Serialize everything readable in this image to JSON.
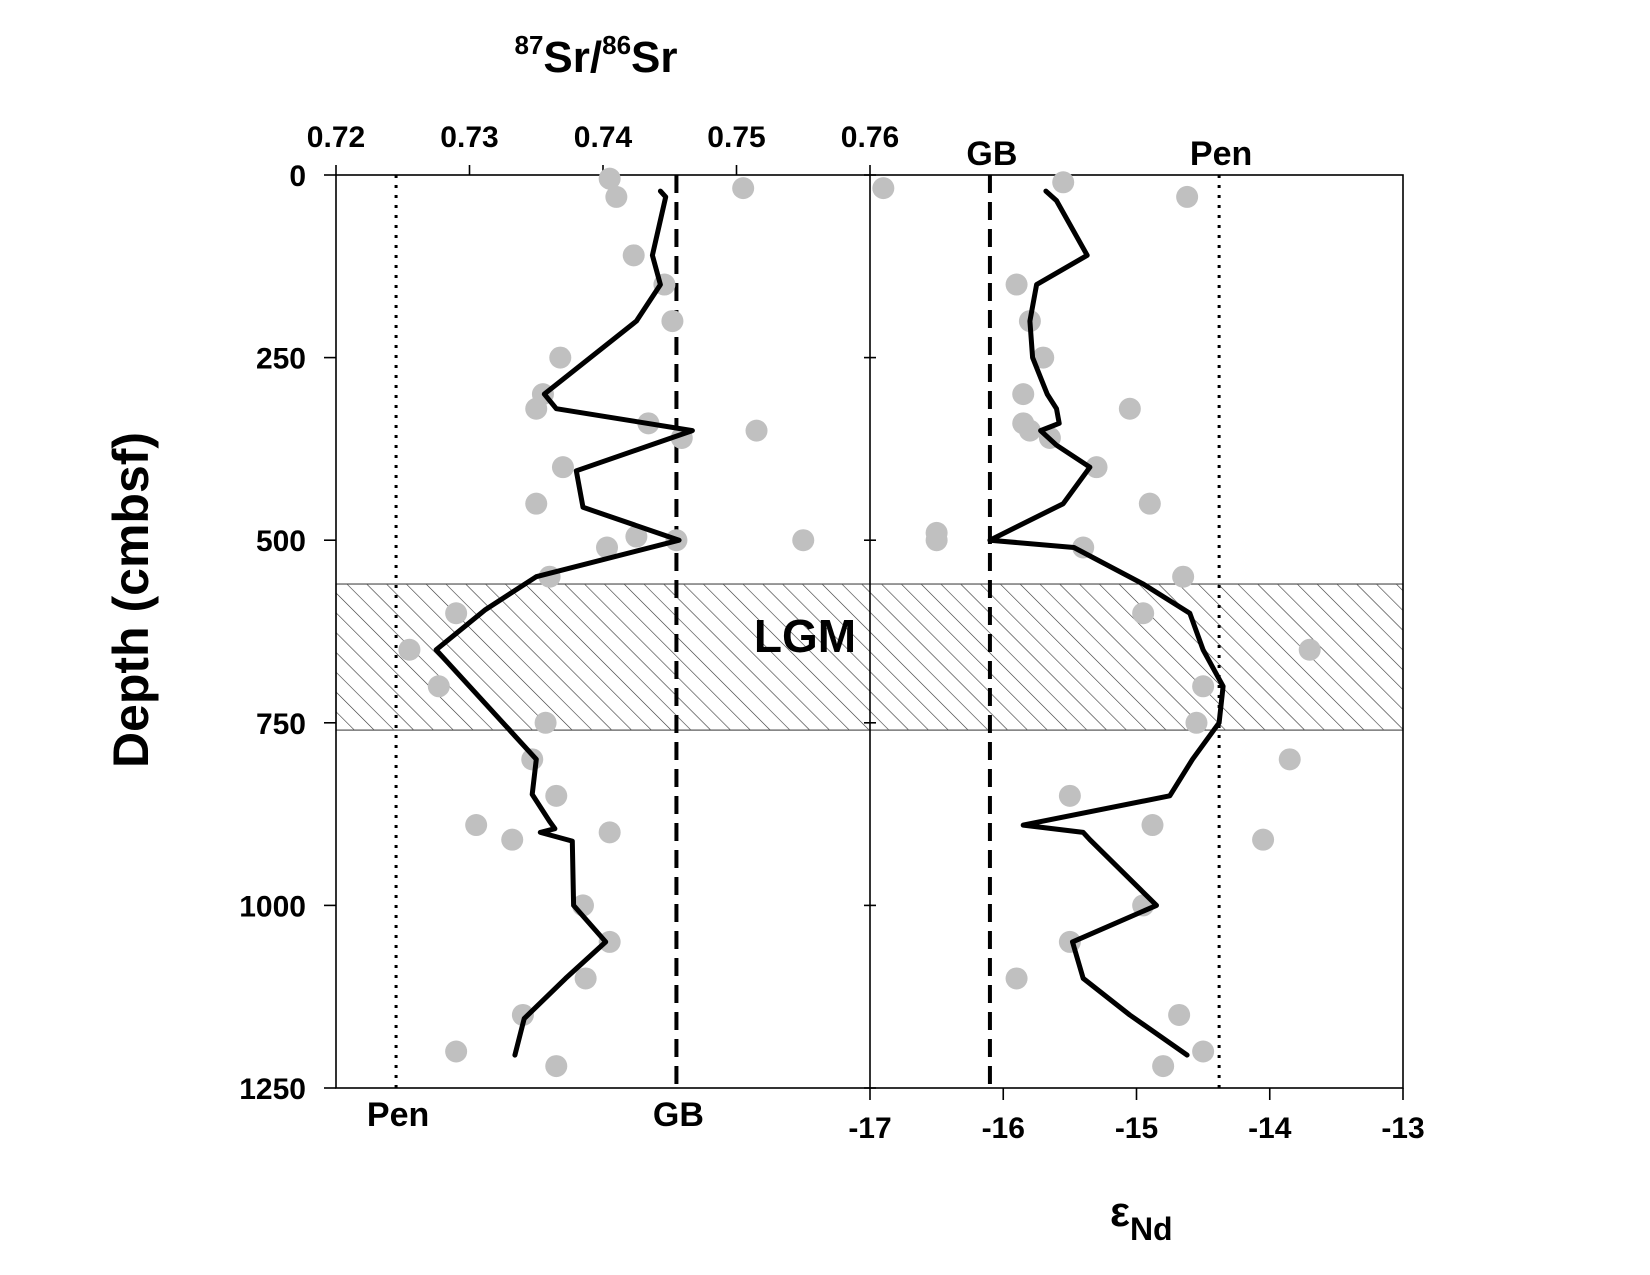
{
  "chart_data": {
    "type": "scatter",
    "y_axis": {
      "label": "Depth (cmbsf)",
      "range": [
        0,
        1250
      ],
      "inverted": true,
      "ticks": [
        "0",
        "250",
        "500",
        "750",
        "1000",
        "1250"
      ],
      "tick_values": [
        0,
        250,
        500,
        750,
        1000,
        1250
      ]
    },
    "band": {
      "label": "LGM",
      "depth_range": [
        560,
        760
      ],
      "pattern": "diagonal-hatch"
    },
    "panels": [
      {
        "id": "sr",
        "axis_position": "top",
        "xlabel_main": "Sr/",
        "xlabel_main2": "Sr",
        "xlabel_sup1": "87",
        "xlabel_sup2": "86",
        "xlim": [
          0.72,
          0.76
        ],
        "ticks": [
          "0.72",
          "0.73",
          "0.74",
          "0.75",
          "0.76"
        ],
        "tick_values": [
          0.72,
          0.73,
          0.74,
          0.75,
          0.76
        ],
        "reference_lines": [
          {
            "label": "Pen",
            "x": 0.7245,
            "style": "dotted",
            "label_pos": "bottom"
          },
          {
            "label": "GB",
            "x": 0.7455,
            "style": "dashed",
            "label_pos": "bottom"
          }
        ],
        "points": [
          [
            0.7405,
            5
          ],
          [
            0.741,
            30
          ],
          [
            0.7505,
            18
          ],
          [
            0.7423,
            110
          ],
          [
            0.7446,
            150
          ],
          [
            0.7452,
            200
          ],
          [
            0.7368,
            250
          ],
          [
            0.7355,
            300
          ],
          [
            0.735,
            320
          ],
          [
            0.7434,
            340
          ],
          [
            0.7459,
            360
          ],
          [
            0.7515,
            350
          ],
          [
            0.737,
            400
          ],
          [
            0.735,
            450
          ],
          [
            0.7403,
            510
          ],
          [
            0.7425,
            495
          ],
          [
            0.7455,
            500
          ],
          [
            0.755,
            500
          ],
          [
            0.736,
            550
          ],
          [
            0.729,
            600
          ],
          [
            0.7255,
            650
          ],
          [
            0.7277,
            700
          ],
          [
            0.7357,
            750
          ],
          [
            0.7347,
            800
          ],
          [
            0.7365,
            850
          ],
          [
            0.7305,
            890
          ],
          [
            0.7332,
            910
          ],
          [
            0.7405,
            900
          ],
          [
            0.7385,
            1000
          ],
          [
            0.7405,
            1050
          ],
          [
            0.7387,
            1100
          ],
          [
            0.734,
            1150
          ],
          [
            0.729,
            1200
          ],
          [
            0.7365,
            1220
          ]
        ],
        "line": [
          [
            0.7443,
            22
          ],
          [
            0.7447,
            30
          ],
          [
            0.7437,
            110
          ],
          [
            0.7443,
            150
          ],
          [
            0.7425,
            200
          ],
          [
            0.7356,
            300
          ],
          [
            0.7365,
            320
          ],
          [
            0.7467,
            350
          ],
          [
            0.738,
            405
          ],
          [
            0.7385,
            455
          ],
          [
            0.7457,
            500
          ],
          [
            0.735,
            550
          ],
          [
            0.7312,
            595
          ],
          [
            0.7275,
            650
          ],
          [
            0.735,
            800
          ],
          [
            0.7347,
            848
          ],
          [
            0.736,
            885
          ],
          [
            0.7364,
            895
          ],
          [
            0.7353,
            900
          ],
          [
            0.7377,
            912
          ],
          [
            0.7378,
            1000
          ],
          [
            0.7402,
            1050
          ],
          [
            0.7372,
            1100
          ],
          [
            0.7341,
            1155
          ],
          [
            0.7334,
            1205
          ]
        ]
      },
      {
        "id": "nd",
        "axis_position": "bottom",
        "xlabel_main": "ε",
        "xlabel_sub": "Nd",
        "xlim": [
          -17,
          -13
        ],
        "ticks": [
          "-17",
          "-16",
          "-15",
          "-14",
          "-13"
        ],
        "tick_values": [
          -17,
          -16,
          -15,
          -14,
          -13
        ],
        "reference_lines": [
          {
            "label": "GB",
            "x": -16.1,
            "style": "dashed",
            "label_pos": "top"
          },
          {
            "label": "Pen",
            "x": -14.38,
            "style": "dotted",
            "label_pos": "top"
          }
        ],
        "points": [
          [
            -16.9,
            18
          ],
          [
            -15.55,
            10
          ],
          [
            -14.62,
            30
          ],
          [
            -15.9,
            150
          ],
          [
            -15.8,
            200
          ],
          [
            -15.7,
            250
          ],
          [
            -15.85,
            300
          ],
          [
            -15.05,
            320
          ],
          [
            -15.85,
            340
          ],
          [
            -15.8,
            350
          ],
          [
            -15.65,
            360
          ],
          [
            -15.3,
            400
          ],
          [
            -14.9,
            450
          ],
          [
            -16.5,
            490
          ],
          [
            -16.5,
            500
          ],
          [
            -15.4,
            510
          ],
          [
            -14.65,
            550
          ],
          [
            -14.95,
            600
          ],
          [
            -13.7,
            650
          ],
          [
            -14.5,
            700
          ],
          [
            -14.55,
            750
          ],
          [
            -13.85,
            800
          ],
          [
            -15.5,
            850
          ],
          [
            -14.88,
            890
          ],
          [
            -14.05,
            910
          ],
          [
            -14.95,
            1000
          ],
          [
            -15.5,
            1050
          ],
          [
            -15.9,
            1100
          ],
          [
            -14.68,
            1150
          ],
          [
            -14.5,
            1200
          ],
          [
            -14.8,
            1220
          ]
        ],
        "line": [
          [
            -15.68,
            22
          ],
          [
            -15.6,
            35
          ],
          [
            -15.37,
            110
          ],
          [
            -15.75,
            150
          ],
          [
            -15.8,
            200
          ],
          [
            -15.78,
            250
          ],
          [
            -15.67,
            300
          ],
          [
            -15.6,
            320
          ],
          [
            -15.58,
            340
          ],
          [
            -15.65,
            345
          ],
          [
            -15.72,
            350
          ],
          [
            -15.6,
            370
          ],
          [
            -15.35,
            400
          ],
          [
            -15.55,
            450
          ],
          [
            -16.1,
            500
          ],
          [
            -15.47,
            510
          ],
          [
            -14.95,
            560
          ],
          [
            -14.6,
            600
          ],
          [
            -14.5,
            650
          ],
          [
            -14.35,
            700
          ],
          [
            -14.38,
            750
          ],
          [
            -14.58,
            800
          ],
          [
            -14.75,
            850
          ],
          [
            -15.85,
            890
          ],
          [
            -15.4,
            900
          ],
          [
            -15.35,
            910
          ],
          [
            -14.85,
            1000
          ],
          [
            -15.48,
            1050
          ],
          [
            -15.4,
            1100
          ],
          [
            -15.05,
            1150
          ],
          [
            -14.62,
            1205
          ]
        ]
      }
    ],
    "colors": {
      "points": "#c0c0c0",
      "line": "#000000",
      "axis": "#000000",
      "hatch": "#333333"
    }
  }
}
